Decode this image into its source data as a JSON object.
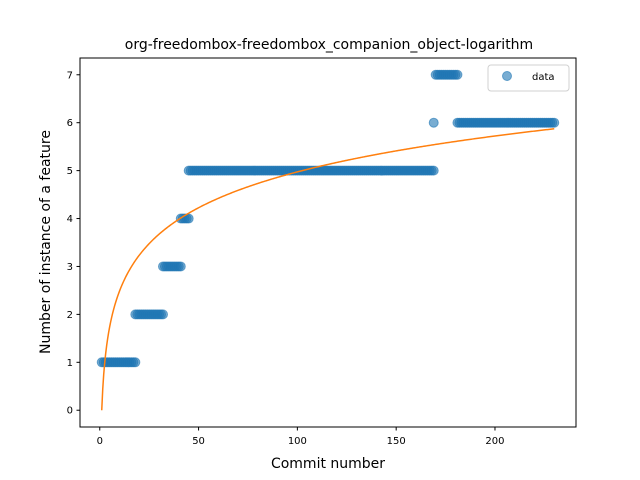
{
  "chart_data": {
    "type": "scatter",
    "title": "org-freedombox-freedombox_companion_object-logarithm",
    "xlabel": "Commit number",
    "ylabel": "Number of instance of a feature",
    "xlim": [
      -10,
      241
    ],
    "ylim": [
      -0.35,
      7.35
    ],
    "xticks": [
      0,
      50,
      100,
      150,
      200
    ],
    "yticks": [
      0,
      1,
      2,
      3,
      4,
      5,
      6,
      7
    ],
    "grid": false,
    "legend": {
      "placement": "top-right",
      "entries": [
        "data"
      ]
    },
    "colors": {
      "data": "#1f77b4",
      "fit": "#ff7f0e"
    },
    "series": [
      {
        "name": "data",
        "kind": "scatter",
        "segments": [
          {
            "x_from": 1,
            "x_to": 18,
            "y": 1
          },
          {
            "x_from": 18,
            "x_to": 32,
            "y": 2
          },
          {
            "x_from": 32,
            "x_to": 41,
            "y": 3
          },
          {
            "x_from": 41,
            "x_to": 45,
            "y": 4
          },
          {
            "x_from": 45,
            "x_to": 169,
            "y": 5
          },
          {
            "x_from": 169,
            "x_to": 169,
            "y": 6
          },
          {
            "x_from": 170,
            "x_to": 181,
            "y": 7
          },
          {
            "x_from": 181,
            "x_to": 230,
            "y": 6
          }
        ]
      },
      {
        "name": "",
        "kind": "line",
        "function": "logarithmic",
        "a": 1.08,
        "b": 0.0,
        "x_from": 1,
        "x_to": 230
      }
    ]
  }
}
